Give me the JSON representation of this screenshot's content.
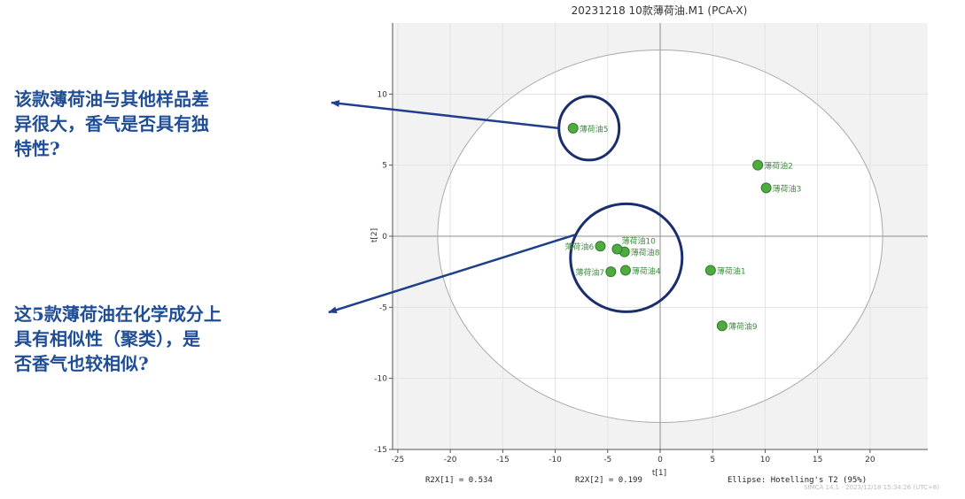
{
  "annotations": [
    {
      "lines": [
        "该款薄荷油与其他样品差",
        "异很大，香气是否具有独",
        "特性?"
      ]
    },
    {
      "lines": [
        "这5款薄荷油在化学成分上",
        "具有相似性（聚类），是",
        "否香气也较相似?"
      ]
    }
  ],
  "chart_data": {
    "type": "scatter",
    "title": "20231218 10款薄荷油.M1 (PCA-X)",
    "xlabel": "t[1]",
    "ylabel": "t[2]",
    "xlim": [
      -25.5,
      25.5
    ],
    "ylim": [
      -15,
      15
    ],
    "xticks": [
      -25,
      -20,
      -15,
      -10,
      -5,
      0,
      5,
      10,
      15,
      20
    ],
    "yticks": [
      -15,
      -10,
      -5,
      0,
      5,
      10
    ],
    "grid": true,
    "points": [
      {
        "label": "薄荷油1",
        "x": 4.8,
        "y": -2.4
      },
      {
        "label": "薄荷油2",
        "x": 9.3,
        "y": 5.0
      },
      {
        "label": "薄荷油3",
        "x": 10.1,
        "y": 3.4
      },
      {
        "label": "薄荷油4",
        "x": -3.3,
        "y": -2.4
      },
      {
        "label": "薄荷油5",
        "x": -8.3,
        "y": 7.6
      },
      {
        "label": "薄荷油6",
        "x": -5.7,
        "y": -0.7
      },
      {
        "label": "薄荷油7",
        "x": -4.7,
        "y": -2.5
      },
      {
        "label": "薄荷油8",
        "x": -3.4,
        "y": -1.1
      },
      {
        "label": "薄荷油9",
        "x": 5.9,
        "y": -6.3
      },
      {
        "label": "薄荷油10",
        "x": -4.1,
        "y": -0.9
      }
    ],
    "ellipse_rx": 21.2,
    "ellipse_ry": 13.1,
    "footer": {
      "r2x1": "R2X[1] = 0.534",
      "r2x2": "R2X[2] = 0.199",
      "ellipse": "Ellipse: Hotelling's T2 (95%)",
      "software": "SIMCA 14.1 - 2023/12/18 15:34:26 (UTC+8)"
    },
    "colors": {
      "point": "#4faa3f",
      "point_edge": "#2e7d2e",
      "label": "#3d8b3d",
      "highlight": "#1a2e6e",
      "arrow": "#1f3f8c",
      "ellipse": "#aaaaaa"
    }
  }
}
